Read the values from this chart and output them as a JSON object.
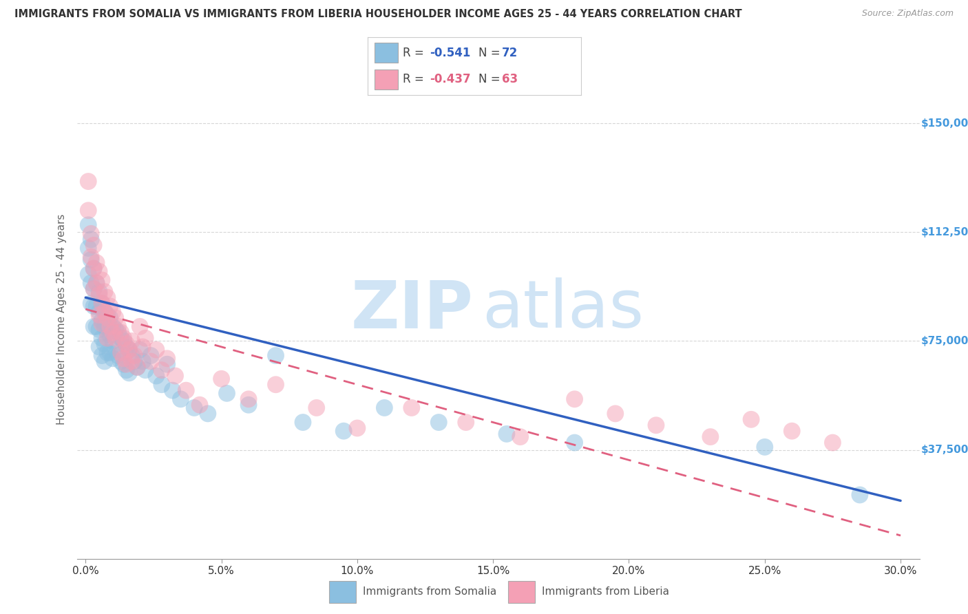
{
  "title": "IMMIGRANTS FROM SOMALIA VS IMMIGRANTS FROM LIBERIA HOUSEHOLDER INCOME AGES 25 - 44 YEARS CORRELATION CHART",
  "source": "Source: ZipAtlas.com",
  "ylabel": "Householder Income Ages 25 - 44 years",
  "xlabel_ticks": [
    "0.0%",
    "5.0%",
    "10.0%",
    "15.0%",
    "20.0%",
    "25.0%",
    "30.0%"
  ],
  "xlabel_vals": [
    0.0,
    0.05,
    0.1,
    0.15,
    0.2,
    0.25,
    0.3
  ],
  "ytick_labels": [
    "$37,500",
    "$75,000",
    "$112,500",
    "$150,000"
  ],
  "ytick_vals": [
    37500,
    75000,
    112500,
    150000
  ],
  "ylim": [
    0,
    165000
  ],
  "xlim": [
    -0.003,
    0.307
  ],
  "somalia_R": -0.541,
  "somalia_N": 72,
  "liberia_R": -0.437,
  "liberia_N": 63,
  "somalia_color": "#8bbfe0",
  "liberia_color": "#f4a0b5",
  "somalia_line_color": "#3060c0",
  "liberia_line_color": "#e06080",
  "watermark_zip": "ZIP",
  "watermark_atlas": "atlas",
  "watermark_color": "#d0e4f5",
  "background_color": "#ffffff",
  "grid_color": "#cccccc",
  "title_color": "#333333",
  "axis_label_color": "#666666",
  "ytick_color": "#4499dd",
  "som_line_x0": 0.0,
  "som_line_y0": 90000,
  "som_line_x1": 0.3,
  "som_line_y1": 20000,
  "lib_line_x0": 0.0,
  "lib_line_y0": 86000,
  "lib_line_x1": 0.3,
  "lib_line_y1": 8000,
  "somalia_x": [
    0.001,
    0.001,
    0.001,
    0.002,
    0.002,
    0.002,
    0.002,
    0.003,
    0.003,
    0.003,
    0.003,
    0.004,
    0.004,
    0.004,
    0.005,
    0.005,
    0.005,
    0.005,
    0.006,
    0.006,
    0.006,
    0.006,
    0.007,
    0.007,
    0.007,
    0.007,
    0.008,
    0.008,
    0.008,
    0.009,
    0.009,
    0.009,
    0.01,
    0.01,
    0.01,
    0.011,
    0.011,
    0.012,
    0.012,
    0.013,
    0.013,
    0.014,
    0.014,
    0.015,
    0.015,
    0.016,
    0.016,
    0.017,
    0.018,
    0.019,
    0.02,
    0.021,
    0.022,
    0.024,
    0.026,
    0.028,
    0.03,
    0.032,
    0.035,
    0.04,
    0.045,
    0.052,
    0.06,
    0.07,
    0.08,
    0.095,
    0.11,
    0.13,
    0.155,
    0.18,
    0.25,
    0.285
  ],
  "somalia_y": [
    115000,
    107000,
    98000,
    110000,
    103000,
    95000,
    88000,
    100000,
    93000,
    87000,
    80000,
    95000,
    87000,
    80000,
    92000,
    85000,
    79000,
    73000,
    88000,
    82000,
    76000,
    70000,
    85000,
    80000,
    74000,
    68000,
    84000,
    78000,
    71000,
    83000,
    77000,
    71000,
    80000,
    75000,
    69000,
    79000,
    72000,
    78000,
    70000,
    76000,
    68000,
    75000,
    67000,
    73000,
    65000,
    72000,
    64000,
    70000,
    68000,
    66000,
    72000,
    68000,
    65000,
    70000,
    63000,
    60000,
    67000,
    58000,
    55000,
    52000,
    50000,
    57000,
    53000,
    70000,
    47000,
    44000,
    52000,
    47000,
    43000,
    40000,
    38500,
    22000
  ],
  "liberia_x": [
    0.001,
    0.001,
    0.002,
    0.002,
    0.003,
    0.003,
    0.003,
    0.004,
    0.004,
    0.005,
    0.005,
    0.005,
    0.006,
    0.006,
    0.006,
    0.007,
    0.007,
    0.008,
    0.008,
    0.008,
    0.009,
    0.009,
    0.01,
    0.01,
    0.011,
    0.011,
    0.012,
    0.013,
    0.013,
    0.014,
    0.014,
    0.015,
    0.015,
    0.016,
    0.017,
    0.017,
    0.018,
    0.019,
    0.02,
    0.021,
    0.022,
    0.024,
    0.026,
    0.028,
    0.03,
    0.033,
    0.037,
    0.042,
    0.05,
    0.06,
    0.07,
    0.085,
    0.1,
    0.12,
    0.14,
    0.16,
    0.18,
    0.195,
    0.21,
    0.23,
    0.245,
    0.26,
    0.275
  ],
  "liberia_y": [
    130000,
    120000,
    112000,
    104000,
    108000,
    100000,
    93000,
    102000,
    95000,
    99000,
    91000,
    84000,
    96000,
    88000,
    81000,
    92000,
    85000,
    90000,
    83000,
    76000,
    87000,
    80000,
    85000,
    78000,
    83000,
    76000,
    80000,
    78000,
    71000,
    76000,
    69000,
    74000,
    67000,
    72000,
    75000,
    68000,
    70000,
    66000,
    80000,
    73000,
    76000,
    68000,
    72000,
    65000,
    69000,
    63000,
    58000,
    53000,
    62000,
    55000,
    60000,
    52000,
    45000,
    52000,
    47000,
    42000,
    55000,
    50000,
    46000,
    42000,
    48000,
    44000,
    40000
  ]
}
